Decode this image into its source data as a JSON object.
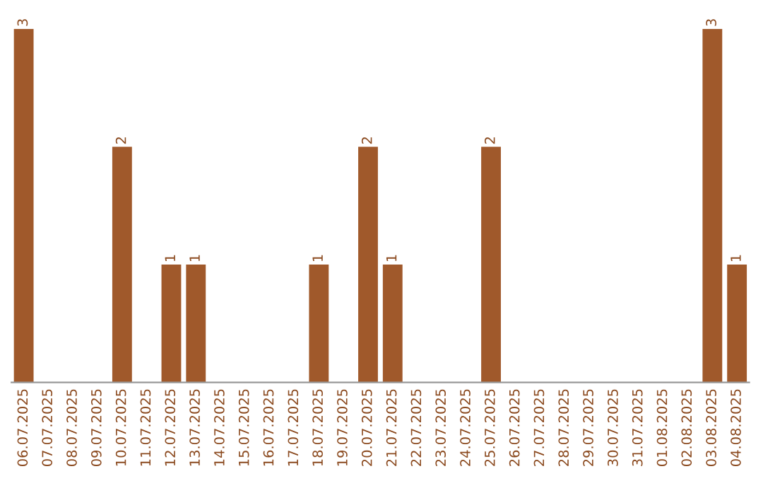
{
  "chart_data": {
    "type": "bar",
    "categories": [
      "06.07.2025",
      "07.07.2025",
      "08.07.2025",
      "09.07.2025",
      "10.07.2025",
      "11.07.2025",
      "12.07.2025",
      "13.07.2025",
      "14.07.2025",
      "15.07.2025",
      "16.07.2025",
      "17.07.2025",
      "18.07.2025",
      "19.07.2025",
      "20.07.2025",
      "21.07.2025",
      "22.07.2025",
      "23.07.2025",
      "24.07.2025",
      "25.07.2025",
      "26.07.2025",
      "27.07.2025",
      "28.07.2025",
      "29.07.2025",
      "30.07.2025",
      "31.07.2025",
      "01.08.2025",
      "02.08.2025",
      "03.08.2025",
      "04.08.2025"
    ],
    "values": [
      3,
      0,
      0,
      0,
      2,
      0,
      1,
      1,
      0,
      0,
      0,
      0,
      1,
      0,
      2,
      1,
      0,
      0,
      0,
      2,
      0,
      0,
      0,
      0,
      0,
      0,
      0,
      0,
      3,
      1
    ],
    "value_labels": [
      "3",
      null,
      null,
      null,
      "2",
      null,
      "1",
      "1",
      null,
      null,
      null,
      null,
      "1",
      null,
      "2",
      "1",
      null,
      null,
      null,
      "2",
      null,
      null,
      null,
      null,
      null,
      null,
      null,
      null,
      "3",
      "1"
    ],
    "color": "#a0592b",
    "grid": false,
    "legend": false
  }
}
